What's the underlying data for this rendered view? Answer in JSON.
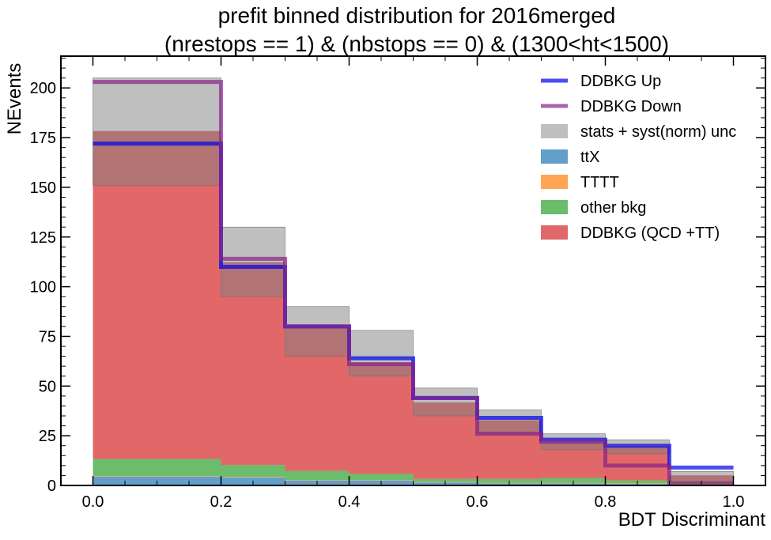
{
  "chart_data": {
    "type": "bar",
    "title": "prefit binned distribution for 2016merged",
    "subtitle": "(nrestops == 1) & (nbstops == 0) & (1300<ht<1500)",
    "xlabel": "BDT Discriminant",
    "ylabel": "NEvents",
    "xlim": [
      -0.05,
      1.05
    ],
    "ylim": [
      0,
      216
    ],
    "xticks": [
      0.0,
      0.2,
      0.4,
      0.6,
      0.8,
      1.0
    ],
    "yticks": [
      0,
      25,
      50,
      75,
      100,
      125,
      150,
      175,
      200
    ],
    "bin_edges": [
      0.0,
      0.2,
      0.3,
      0.4,
      0.5,
      0.6,
      0.7,
      0.8,
      0.9,
      1.0
    ],
    "stacked_series": [
      {
        "name": "ttX",
        "color": "#1f77b4",
        "values": [
          4.5,
          4.0,
          2.5,
          2.5,
          1.5,
          1.0,
          1.0,
          0.8,
          0.4
        ]
      },
      {
        "name": "TTTT",
        "color": "#ff7f0e",
        "values": [
          0.3,
          0.3,
          0.3,
          0.3,
          0.3,
          0.3,
          0.3,
          0.3,
          0.2
        ]
      },
      {
        "name": "other bkg",
        "color": "#2ca02c",
        "values": [
          8.5,
          6.0,
          4.5,
          3.0,
          1.5,
          2.0,
          2.5,
          1.5,
          1.0
        ]
      },
      {
        "name": "DDBKG (QCD +TT)",
        "color": "#d62728",
        "values": [
          165.0,
          102.0,
          72.0,
          56.0,
          38.5,
          29.5,
          18.0,
          17.0,
          3.5
        ]
      }
    ],
    "uncertainty_band": {
      "name": "stats + syst(norm) unc",
      "color": "#808080",
      "low": [
        151,
        95,
        65,
        55,
        35,
        26,
        18,
        16,
        2
      ],
      "high": [
        205,
        130,
        90,
        78,
        49,
        38,
        26,
        23,
        7
      ]
    },
    "step_lines": [
      {
        "name": "DDBKG Up",
        "color": "#0000ee",
        "values": [
          172,
          110,
          80,
          64,
          44,
          34,
          23,
          20,
          9
        ]
      },
      {
        "name": "DDBKG Down",
        "color": "#882288",
        "values": [
          203,
          114,
          80,
          61,
          44,
          26,
          22,
          10,
          1
        ]
      }
    ],
    "legend_position": "top-right",
    "grid": false
  }
}
